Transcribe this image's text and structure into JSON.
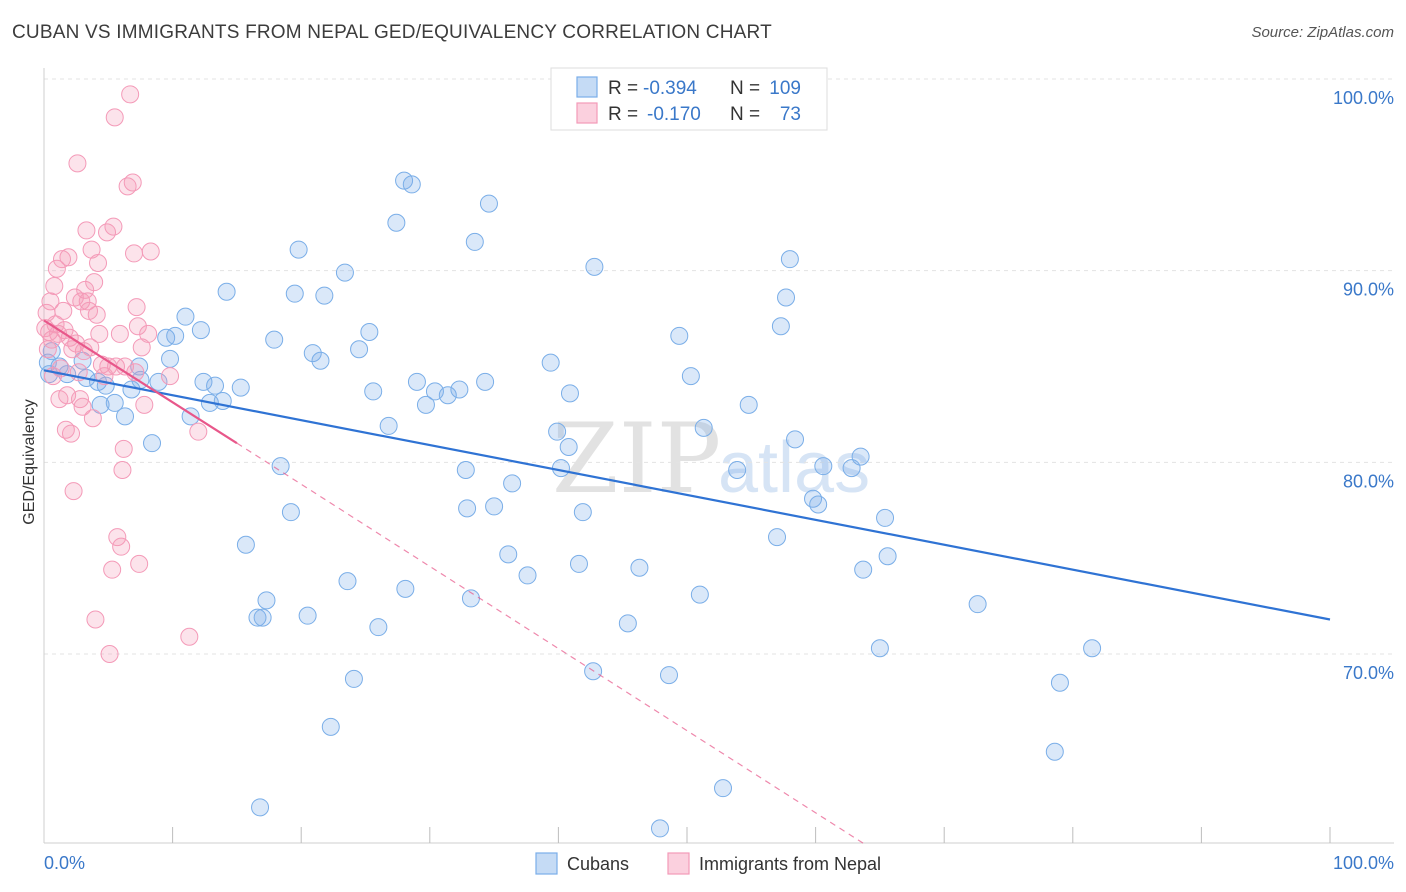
{
  "title": "CUBAN VS IMMIGRANTS FROM NEPAL GED/EQUIVALENCY CORRELATION CHART",
  "source": "Source: ZipAtlas.com",
  "watermark": {
    "zip": "ZIP",
    "atlas": "atlas"
  },
  "chart_data": {
    "type": "scatter",
    "title": "CUBAN VS IMMIGRANTS FROM NEPAL GED/EQUIVALENCY CORRELATION CHART",
    "ylabel": "GED/Equivalency",
    "xlabel": "",
    "xlim": [
      0,
      100
    ],
    "ylim": [
      59.5,
      102
    ],
    "x_tick_labels": {
      "left": "0.0%",
      "right": "100.0%"
    },
    "y_ticks": [
      {
        "value": 100,
        "label": "100.0%"
      },
      {
        "value": 90,
        "label": "90.0%"
      },
      {
        "value": 80,
        "label": "80.0%"
      },
      {
        "value": 70,
        "label": "70.0%"
      }
    ],
    "legend": [
      {
        "name": "Cubans",
        "r_label": "R =",
        "r": "-0.394",
        "n_label": "N =",
        "n": "109",
        "color": "#7aaee8"
      },
      {
        "name": "Immigrants from Nepal",
        "r_label": "R =",
        "r": "-0.170",
        "n_label": "N =",
        "n": "73",
        "color": "#f49ab8"
      }
    ],
    "series": [
      {
        "name": "Cubans",
        "color": "#7aaee8",
        "trend": {
          "x0": 0.0,
          "y0": 84.8,
          "x1": 100.0,
          "y1": 71.8,
          "color": "#2f73d4"
        },
        "points": [
          [
            0.3,
            85.2
          ],
          [
            0.4,
            84.6
          ],
          [
            0.6,
            85.8
          ],
          [
            1.2,
            85.0
          ],
          [
            1.8,
            84.6
          ],
          [
            3.0,
            85.3
          ],
          [
            3.3,
            84.4
          ],
          [
            4.2,
            84.2
          ],
          [
            4.4,
            83.0
          ],
          [
            4.8,
            84.0
          ],
          [
            5.5,
            83.1
          ],
          [
            6.3,
            82.4
          ],
          [
            6.8,
            83.8
          ],
          [
            7.5,
            84.3
          ],
          [
            7.4,
            85.0
          ],
          [
            8.4,
            81.0
          ],
          [
            8.9,
            84.2
          ],
          [
            9.5,
            86.5
          ],
          [
            9.8,
            85.4
          ],
          [
            10.2,
            86.6
          ],
          [
            11.0,
            87.6
          ],
          [
            11.4,
            82.4
          ],
          [
            12.2,
            86.9
          ],
          [
            12.4,
            84.2
          ],
          [
            12.9,
            83.1
          ],
          [
            13.3,
            84.0
          ],
          [
            13.9,
            83.2
          ],
          [
            14.2,
            88.9
          ],
          [
            15.3,
            83.9
          ],
          [
            15.7,
            75.7
          ],
          [
            16.6,
            71.9
          ],
          [
            16.8,
            62.0
          ],
          [
            17.0,
            71.9
          ],
          [
            17.3,
            72.8
          ],
          [
            17.9,
            86.4
          ],
          [
            18.4,
            79.8
          ],
          [
            19.2,
            77.4
          ],
          [
            19.5,
            88.8
          ],
          [
            19.8,
            91.1
          ],
          [
            20.5,
            72.0
          ],
          [
            20.9,
            85.7
          ],
          [
            21.5,
            85.3
          ],
          [
            21.8,
            88.7
          ],
          [
            22.3,
            66.2
          ],
          [
            23.4,
            89.9
          ],
          [
            23.6,
            73.8
          ],
          [
            24.1,
            68.7
          ],
          [
            24.5,
            85.9
          ],
          [
            25.3,
            86.8
          ],
          [
            25.6,
            83.7
          ],
          [
            26.0,
            71.4
          ],
          [
            26.8,
            81.9
          ],
          [
            27.4,
            92.5
          ],
          [
            28.1,
            73.4
          ],
          [
            28.0,
            94.7
          ],
          [
            28.6,
            94.5
          ],
          [
            29.0,
            84.2
          ],
          [
            29.7,
            83.0
          ],
          [
            30.4,
            83.7
          ],
          [
            31.4,
            83.5
          ],
          [
            32.3,
            83.8
          ],
          [
            32.8,
            79.6
          ],
          [
            32.9,
            77.6
          ],
          [
            33.2,
            72.9
          ],
          [
            33.5,
            91.5
          ],
          [
            34.3,
            84.2
          ],
          [
            34.6,
            93.5
          ],
          [
            35.0,
            77.7
          ],
          [
            36.1,
            75.2
          ],
          [
            36.4,
            78.9
          ],
          [
            37.6,
            74.1
          ],
          [
            39.4,
            85.2
          ],
          [
            39.9,
            81.6
          ],
          [
            40.2,
            79.7
          ],
          [
            40.8,
            80.8
          ],
          [
            40.9,
            83.6
          ],
          [
            41.6,
            74.7
          ],
          [
            41.9,
            77.4
          ],
          [
            42.7,
            69.1
          ],
          [
            42.8,
            90.2
          ],
          [
            45.4,
            71.6
          ],
          [
            46.3,
            74.5
          ],
          [
            47.9,
            60.9
          ],
          [
            48.6,
            68.9
          ],
          [
            49.4,
            86.6
          ],
          [
            50.3,
            84.5
          ],
          [
            51.0,
            73.1
          ],
          [
            51.3,
            81.8
          ],
          [
            52.8,
            63.0
          ],
          [
            53.9,
            79.6
          ],
          [
            54.8,
            83.0
          ],
          [
            57.0,
            76.1
          ],
          [
            57.3,
            87.1
          ],
          [
            57.7,
            88.6
          ],
          [
            58.0,
            90.6
          ],
          [
            58.4,
            81.2
          ],
          [
            59.8,
            78.1
          ],
          [
            60.2,
            77.8
          ],
          [
            60.6,
            79.8
          ],
          [
            62.8,
            79.7
          ],
          [
            63.5,
            80.3
          ],
          [
            63.7,
            74.4
          ],
          [
            65.0,
            70.3
          ],
          [
            65.4,
            77.1
          ],
          [
            65.6,
            75.1
          ],
          [
            72.6,
            72.6
          ],
          [
            78.6,
            64.9
          ],
          [
            79.0,
            68.5
          ],
          [
            81.5,
            70.3
          ]
        ]
      },
      {
        "name": "Immigrants from Nepal",
        "color": "#f49ab8",
        "trend": {
          "x0": 0.0,
          "y0": 87.4,
          "x1": 15.0,
          "y1": 81.0,
          "color": "#e8578a",
          "extended_dashed_to": {
            "x": 64.0,
            "y": 60.0
          }
        },
        "points": [
          [
            0.1,
            87.0
          ],
          [
            0.2,
            87.8
          ],
          [
            0.3,
            85.9
          ],
          [
            0.4,
            86.8
          ],
          [
            0.5,
            88.4
          ],
          [
            0.6,
            86.4
          ],
          [
            0.7,
            84.5
          ],
          [
            0.8,
            89.2
          ],
          [
            0.9,
            87.2
          ],
          [
            1.0,
            90.1
          ],
          [
            1.1,
            86.7
          ],
          [
            1.2,
            83.3
          ],
          [
            1.3,
            84.9
          ],
          [
            1.4,
            90.6
          ],
          [
            1.5,
            87.9
          ],
          [
            1.6,
            86.9
          ],
          [
            1.7,
            81.7
          ],
          [
            1.8,
            83.5
          ],
          [
            1.9,
            90.7
          ],
          [
            2.0,
            86.5
          ],
          [
            2.1,
            81.5
          ],
          [
            2.2,
            85.9
          ],
          [
            2.3,
            78.5
          ],
          [
            2.4,
            88.6
          ],
          [
            2.5,
            86.2
          ],
          [
            2.6,
            95.6
          ],
          [
            2.7,
            84.7
          ],
          [
            2.8,
            83.3
          ],
          [
            2.9,
            88.4
          ],
          [
            3.0,
            82.9
          ],
          [
            3.1,
            85.8
          ],
          [
            3.2,
            89.0
          ],
          [
            3.3,
            92.1
          ],
          [
            3.4,
            88.4
          ],
          [
            3.5,
            87.9
          ],
          [
            3.6,
            86.0
          ],
          [
            3.7,
            91.1
          ],
          [
            3.8,
            82.3
          ],
          [
            3.9,
            89.4
          ],
          [
            4.0,
            71.8
          ],
          [
            4.1,
            87.7
          ],
          [
            4.2,
            90.4
          ],
          [
            4.3,
            86.7
          ],
          [
            4.5,
            85.1
          ],
          [
            4.7,
            84.5
          ],
          [
            4.9,
            92.0
          ],
          [
            5.0,
            85.0
          ],
          [
            5.1,
            70.0
          ],
          [
            5.3,
            74.4
          ],
          [
            5.4,
            92.3
          ],
          [
            5.5,
            98.0
          ],
          [
            5.6,
            85.0
          ],
          [
            5.7,
            76.1
          ],
          [
            5.9,
            86.7
          ],
          [
            6.0,
            75.6
          ],
          [
            6.1,
            79.6
          ],
          [
            6.2,
            80.7
          ],
          [
            6.3,
            85.0
          ],
          [
            6.5,
            94.4
          ],
          [
            6.7,
            99.2
          ],
          [
            6.9,
            94.6
          ],
          [
            7.0,
            90.9
          ],
          [
            7.1,
            84.7
          ],
          [
            7.2,
            88.1
          ],
          [
            7.3,
            87.1
          ],
          [
            7.4,
            74.7
          ],
          [
            7.6,
            86.0
          ],
          [
            7.8,
            83.0
          ],
          [
            8.1,
            86.7
          ],
          [
            8.3,
            91.0
          ],
          [
            9.8,
            84.5
          ],
          [
            11.3,
            70.9
          ],
          [
            12.0,
            81.6
          ]
        ]
      }
    ]
  }
}
